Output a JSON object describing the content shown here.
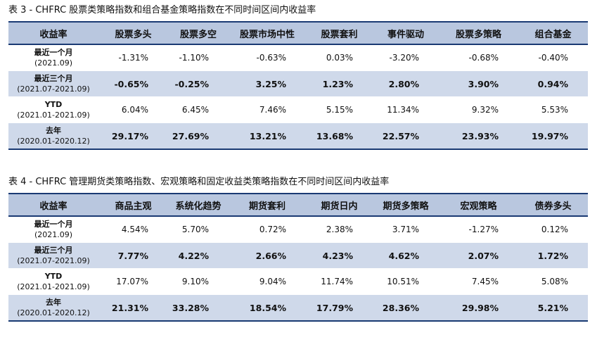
{
  "table1": {
    "caption": "表 3 - CHFRC 股票类策略指数和组合基金策略指数在不同时间区间内收益率",
    "headers": [
      "收益率",
      "股票多头",
      "股票多空",
      "股票市场中性",
      "股票套利",
      "事件驱动",
      "股票多策略",
      "组合基金"
    ],
    "rows": [
      {
        "label": "最近一个月",
        "period": "(2021.09)",
        "values": [
          "-1.31%",
          "-1.10%",
          "-0.63%",
          "0.03%",
          "-3.20%",
          "-0.68%",
          "-0.40%"
        ]
      },
      {
        "label": "最近三个月",
        "period": "(2021.07-2021.09)",
        "values": [
          "-0.65%",
          "-0.25%",
          "3.25%",
          "1.23%",
          "2.80%",
          "3.90%",
          "0.94%"
        ]
      },
      {
        "label": "YTD",
        "period": "(2021.01-2021.09)",
        "values": [
          "6.04%",
          "6.45%",
          "7.46%",
          "5.15%",
          "11.34%",
          "9.32%",
          "5.53%"
        ]
      },
      {
        "label": "去年",
        "period": "(2020.01-2020.12)",
        "values": [
          "29.17%",
          "27.69%",
          "13.21%",
          "13.68%",
          "22.57%",
          "23.93%",
          "19.97%"
        ]
      }
    ]
  },
  "table2": {
    "caption": "表 4 - CHFRC 管理期货类策略指数、宏观策略和固定收益类策略指数在不同时间区间内收益率",
    "headers": [
      "收益率",
      "商品主观",
      "系统化趋势",
      "期货套利",
      "期货日内",
      "期货多策略",
      "宏观策略",
      "债券多头"
    ],
    "rows": [
      {
        "label": "最近一个月",
        "period": "(2021.09)",
        "values": [
          "4.54%",
          "5.70%",
          "0.72%",
          "2.38%",
          "3.71%",
          "-1.27%",
          "0.12%"
        ]
      },
      {
        "label": "最近三个月",
        "period": "(2021.07-2021.09)",
        "values": [
          "7.77%",
          "4.22%",
          "2.66%",
          "4.23%",
          "4.62%",
          "2.07%",
          "1.72%"
        ]
      },
      {
        "label": "YTD",
        "period": "(2021.01-2021.09)",
        "values": [
          "17.07%",
          "9.10%",
          "9.04%",
          "11.74%",
          "10.51%",
          "7.45%",
          "5.08%"
        ]
      },
      {
        "label": "去年",
        "period": "(2020.01-2020.12)",
        "values": [
          "21.31%",
          "33.28%",
          "18.54%",
          "17.79%",
          "28.36%",
          "29.98%",
          "5.21%"
        ]
      }
    ]
  }
}
